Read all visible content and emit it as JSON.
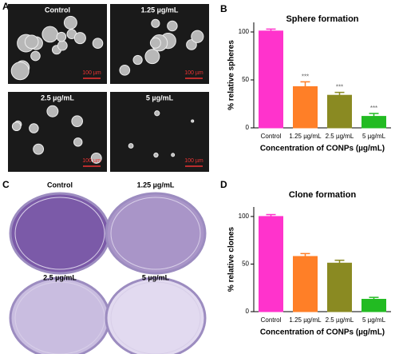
{
  "figure": {
    "panel_a": {
      "letter": "A",
      "images": [
        {
          "label": "Control",
          "scale_bar": "100 µm"
        },
        {
          "label": "1.25 µg/mL",
          "scale_bar": "100 µm"
        },
        {
          "label": "2.5 µg/mL",
          "scale_bar": "100 µm"
        },
        {
          "label": "5 µg/mL",
          "scale_bar": "100 µm"
        }
      ]
    },
    "panel_c": {
      "letter": "C",
      "images": [
        {
          "label": "Control"
        },
        {
          "label": "1.25 µg/mL"
        },
        {
          "label": "2.5 µg/mL"
        },
        {
          "label": "5 µg/mL"
        }
      ]
    }
  },
  "chart_data": [
    {
      "type": "bar",
      "panel_label": "B",
      "title": "Sphere formation",
      "x_label": "Concentration of CONPs (µg/mL)",
      "y_label": "% relative spheres",
      "categories": [
        "Control",
        "1.25 µg/mL",
        "2.5 µg/mL",
        "5 µg/mL"
      ],
      "values": [
        101,
        43,
        34,
        12
      ],
      "errors": [
        2,
        5,
        3,
        3
      ],
      "colors": [
        "#ff33cc",
        "#ff7f27",
        "#8a8a22",
        "#22bb22"
      ],
      "significance": [
        null,
        "***",
        "***",
        "***"
      ],
      "ylim": [
        0,
        110
      ],
      "yticks": [
        0,
        50,
        100
      ]
    },
    {
      "type": "bar",
      "panel_label": "D",
      "title": "Clone formation",
      "x_label": "Concentration of CONPs (µg/mL)",
      "y_label": "% relative clones",
      "categories": [
        "Control",
        "1.25 µg/mL",
        "2.5 µg/mL",
        "5 µg/mL"
      ],
      "values": [
        100,
        58,
        51,
        13
      ],
      "errors": [
        2,
        3,
        3,
        2
      ],
      "colors": [
        "#ff33cc",
        "#ff7f27",
        "#8a8a22",
        "#22bb22"
      ],
      "ylim": [
        0,
        110
      ],
      "yticks": [
        0,
        50,
        100
      ]
    }
  ]
}
